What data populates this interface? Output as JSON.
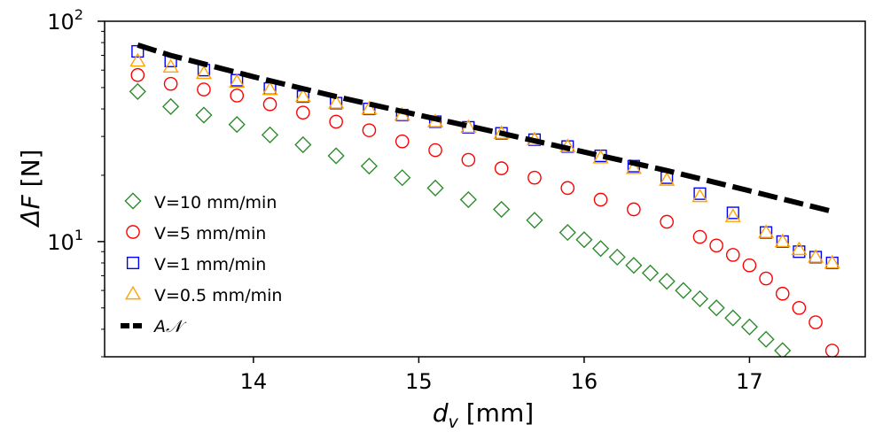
{
  "chart_data": {
    "type": "scatter",
    "title": "",
    "xlabel_main": "d",
    "xlabel_sub": "v",
    "xlabel_unit": " [mm]",
    "ylabel_main": "ΔF",
    "ylabel_unit": " [N]",
    "yscale": "log",
    "xlim": [
      13.1,
      17.7
    ],
    "ylim": [
      3.0,
      100.0
    ],
    "xticks": [
      {
        "value": 14,
        "label": "14"
      },
      {
        "value": 15,
        "label": "15"
      },
      {
        "value": 16,
        "label": "16"
      },
      {
        "value": 17,
        "label": "17"
      }
    ],
    "yticks": [
      {
        "value": 10,
        "base": "10",
        "exp": "1"
      },
      {
        "value": 100,
        "base": "10",
        "exp": "2"
      }
    ],
    "legend_position": "lower-left",
    "series": [
      {
        "name": "V=10 mm/min",
        "marker": "diamond",
        "color": "#2e8b2e",
        "x": [
          13.3,
          13.5,
          13.7,
          13.9,
          14.1,
          14.3,
          14.5,
          14.7,
          14.9,
          15.1,
          15.3,
          15.5,
          15.7,
          15.9,
          16.0,
          16.1,
          16.2,
          16.3,
          16.4,
          16.5,
          16.6,
          16.7,
          16.8,
          16.9,
          17.0,
          17.1,
          17.2
        ],
        "y": [
          48,
          41,
          37.5,
          34,
          30.5,
          27.5,
          24.5,
          22,
          19.5,
          17.5,
          15.5,
          14,
          12.5,
          11,
          10.2,
          9.3,
          8.5,
          7.8,
          7.2,
          6.6,
          6.0,
          5.5,
          5.0,
          4.5,
          4.1,
          3.6,
          3.2
        ]
      },
      {
        "name": "V=5 mm/min",
        "marker": "circle",
        "color": "#ff0000",
        "x": [
          13.3,
          13.5,
          13.7,
          13.9,
          14.1,
          14.3,
          14.5,
          14.7,
          14.9,
          15.1,
          15.3,
          15.5,
          15.7,
          15.9,
          16.1,
          16.3,
          16.5,
          16.7,
          16.8,
          16.9,
          17.0,
          17.1,
          17.2,
          17.3,
          17.4,
          17.5
        ],
        "y": [
          57,
          52,
          49,
          46,
          42,
          38.5,
          35,
          32,
          28.5,
          26,
          23.5,
          21.5,
          19.5,
          17.5,
          15.5,
          14,
          12.3,
          10.5,
          9.6,
          8.7,
          7.8,
          6.8,
          5.8,
          5.0,
          4.3,
          3.2
        ]
      },
      {
        "name": "V=1 mm/min",
        "marker": "square",
        "color": "#0000ff",
        "x": [
          13.3,
          13.5,
          13.7,
          13.9,
          14.1,
          14.3,
          14.5,
          14.7,
          14.9,
          15.1,
          15.3,
          15.5,
          15.7,
          15.9,
          16.1,
          16.3,
          16.5,
          16.7,
          16.9,
          17.1,
          17.2,
          17.3,
          17.4,
          17.5
        ],
        "y": [
          73,
          66,
          60,
          54,
          49.5,
          45.5,
          42.5,
          40,
          37.5,
          35,
          33,
          31,
          29,
          27,
          24.5,
          22,
          19.5,
          16.5,
          13.5,
          11,
          10,
          9,
          8.5,
          8.0
        ]
      },
      {
        "name": "V=0.5 mm/min",
        "marker": "triangle",
        "color": "#ffa500",
        "x": [
          13.3,
          13.5,
          13.7,
          13.9,
          14.1,
          14.3,
          14.5,
          14.7,
          14.9,
          15.1,
          15.3,
          15.5,
          15.7,
          15.9,
          16.1,
          16.3,
          16.5,
          16.7,
          16.9,
          17.1,
          17.2,
          17.3,
          17.4,
          17.5
        ],
        "y": [
          66,
          62,
          58,
          53,
          49,
          45.5,
          42.5,
          40,
          37.5,
          35,
          33,
          31,
          29,
          27,
          24,
          21.5,
          19,
          16,
          13,
          11,
          10,
          9.2,
          8.5,
          8.0
        ]
      }
    ],
    "fit": {
      "name": "AN",
      "label_text": "A",
      "label_script": "𝒩",
      "style": "dashed",
      "color": "#000000",
      "x": [
        13.3,
        13.5,
        14.0,
        14.5,
        15.0,
        15.5,
        16.0,
        16.5,
        17.0,
        17.5
      ],
      "y": [
        78,
        70,
        56,
        45.5,
        37.5,
        31,
        25.5,
        21,
        17,
        13.7
      ]
    }
  }
}
